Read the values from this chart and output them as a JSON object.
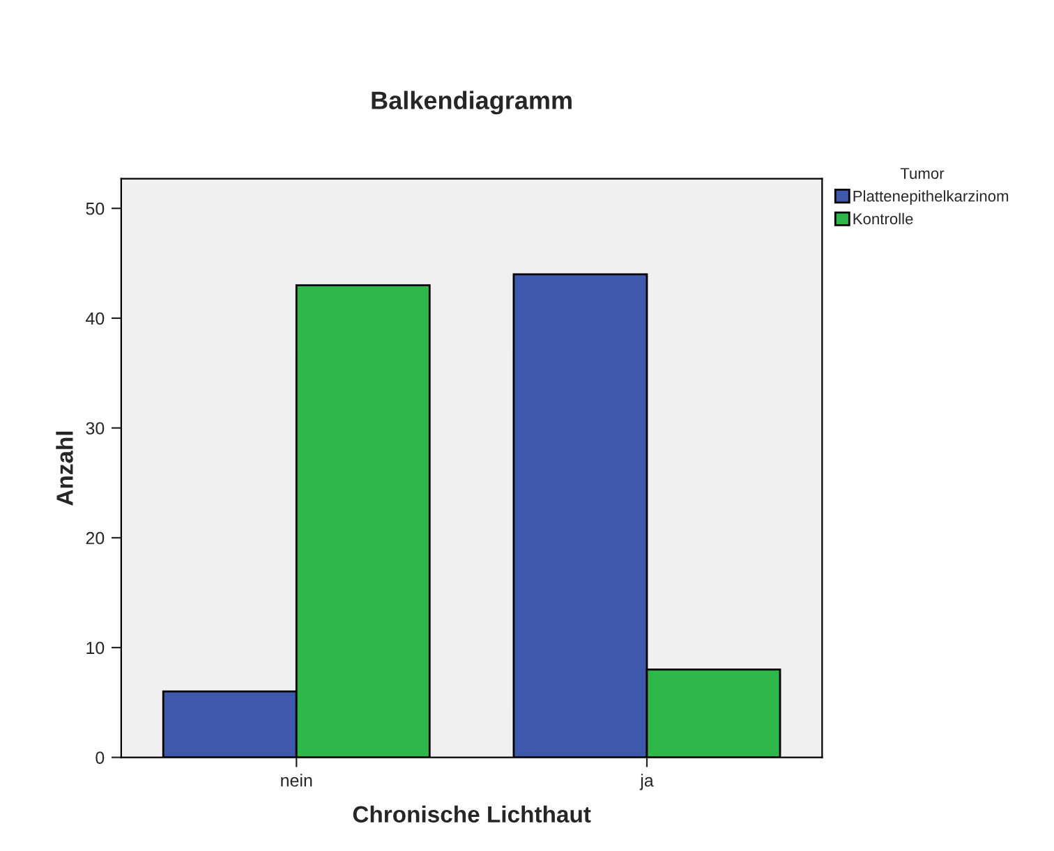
{
  "chart_data": {
    "type": "bar",
    "title": "Balkendiagramm",
    "xlabel": "Chronische Lichthaut",
    "ylabel": "Anzahl",
    "legend_title": "Tumor",
    "categories": [
      "nein",
      "ja"
    ],
    "series": [
      {
        "name": "Plattenepithelkarzinom",
        "color": "#3e58ac",
        "values": [
          6,
          44
        ]
      },
      {
        "name": "Kontrolle",
        "color": "#2eb84a",
        "values": [
          43,
          8
        ]
      }
    ],
    "ylim": [
      0,
      52.7
    ],
    "yticks": [
      0,
      10,
      20,
      30,
      40,
      50
    ],
    "grid": false,
    "legend": "top right"
  }
}
